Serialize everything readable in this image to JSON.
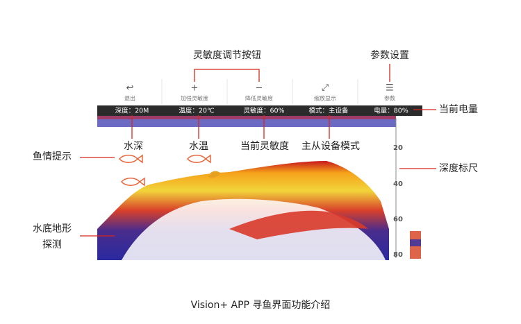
{
  "toolbar": {
    "buttons": [
      "退出",
      "加强灵敏度",
      "降低灵敏度",
      "缩放显示",
      "参数"
    ]
  },
  "status_bar": [
    "深度：20M",
    "温度：20℃",
    "灵敏度：60%",
    "模式：主设备",
    "电量：80%"
  ],
  "depth_scale": [
    20,
    40,
    60,
    80
  ],
  "annotations": {
    "sensitivity_buttons": "灵敏度调节按钮",
    "settings": "参数设置",
    "battery": "当前电量",
    "depth": "水深",
    "temperature": "水温",
    "sensitivity": "当前灵敏度",
    "device_mode": "主从设备模式",
    "fish_alert": "鱼情提示",
    "depth_ruler": "深度标尺",
    "bottom_terrain": [
      "水底地形",
      "探测"
    ]
  },
  "caption": "Vision+ APP 寻鱼界面功能介绍"
}
